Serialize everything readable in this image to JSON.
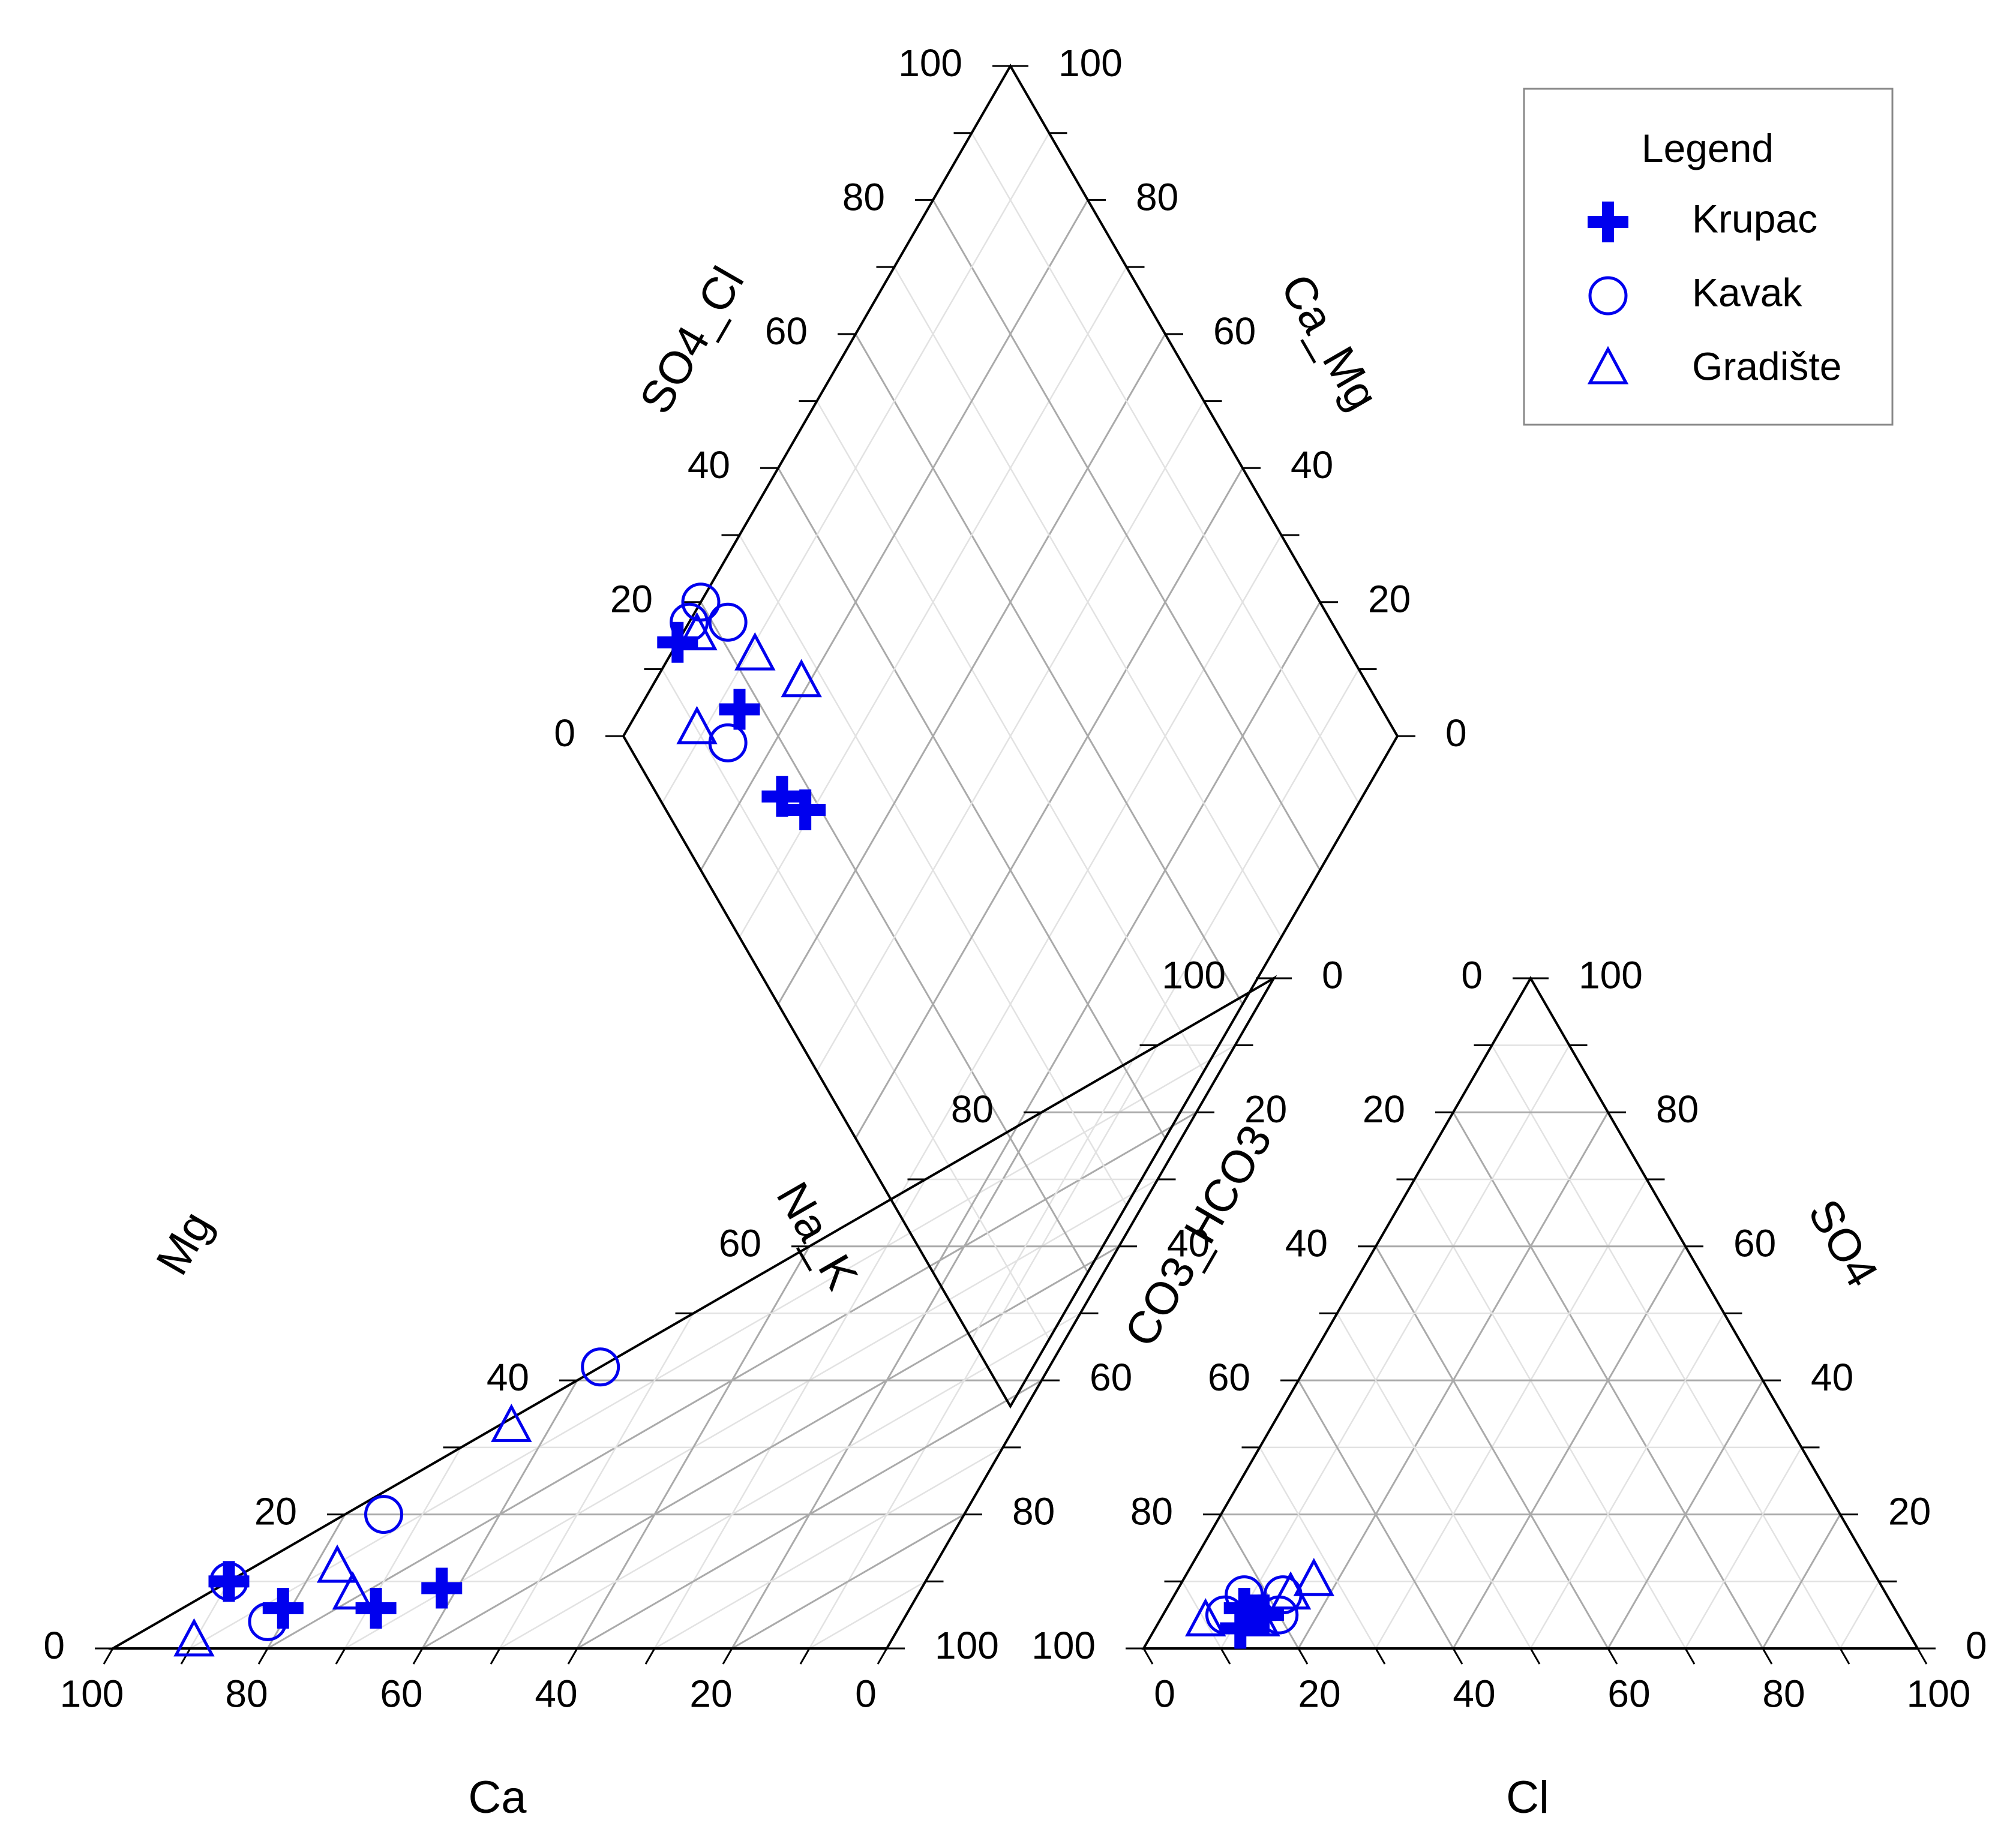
{
  "chart_data": {
    "type": "piper",
    "title": "",
    "colors": {
      "marker": "#0000ee",
      "frame": "#000000",
      "grid_major": "#aaaaaa",
      "grid_minor": "#e2e2e2"
    },
    "tick_labels": [
      "0",
      "20",
      "40",
      "60",
      "80",
      "100"
    ],
    "cation_triangle": {
      "bottom_axis_title": "Ca",
      "left_axis_title": "Mg",
      "right_axis_title": "Na_K"
    },
    "anion_triangle": {
      "bottom_axis_title": "Cl",
      "left_axis_title": "CO3_HCO3",
      "right_axis_title": "SO4"
    },
    "diamond": {
      "left_axis_title": "SO4_Cl",
      "right_axis_title": "Ca_Mg"
    },
    "legend": {
      "title": "Legend",
      "placement": "top-right"
    },
    "series": [
      {
        "name": "Krupac",
        "marker": "plus",
        "cations": [
          {
            "Ca": 90,
            "Mg": 10,
            "NaK": 0
          },
          {
            "Ca": 81,
            "Mg": 6,
            "NaK": 13
          },
          {
            "Ca": 69,
            "Mg": 6,
            "NaK": 25
          },
          {
            "Ca": 62,
            "Mg": 9,
            "NaK": 29
          }
        ],
        "anions": [
          {
            "Cl": 11,
            "SO4": 3,
            "HCO3": 86
          },
          {
            "Cl": 12,
            "SO4": 5,
            "HCO3": 83
          },
          {
            "Cl": 10,
            "SO4": 6,
            "HCO3": 84
          },
          {
            "Cl": 13,
            "SO4": 5,
            "HCO3": 82
          }
        ]
      },
      {
        "name": "Kavak",
        "marker": "circle",
        "cations": [
          {
            "Ca": 90,
            "Mg": 10,
            "NaK": 0
          },
          {
            "Ca": 75,
            "Mg": 20,
            "NaK": 5
          },
          {
            "Ca": 82,
            "Mg": 4,
            "NaK": 14
          },
          {
            "Ca": 58,
            "Mg": 42,
            "NaK": 0
          }
        ],
        "anions": [
          {
            "Cl": 9,
            "SO4": 8,
            "HCO3": 83
          },
          {
            "Cl": 14,
            "SO4": 8,
            "HCO3": 78
          },
          {
            "Cl": 8,
            "SO4": 5,
            "HCO3": 87
          },
          {
            "Cl": 15,
            "SO4": 5,
            "HCO3": 80
          }
        ]
      },
      {
        "name": "Gradište",
        "marker": "triangle",
        "cations": [
          {
            "Ca": 90,
            "Mg": 1,
            "NaK": 9
          },
          {
            "Ca": 77,
            "Mg": 12,
            "NaK": 11
          },
          {
            "Ca": 73,
            "Mg": 8,
            "NaK": 19
          },
          {
            "Ca": 65,
            "Mg": 33,
            "NaK": 2
          }
        ],
        "anions": [
          {
            "Cl": 6,
            "SO4": 4,
            "HCO3": 90
          },
          {
            "Cl": 15,
            "SO4": 8,
            "HCO3": 77
          },
          {
            "Cl": 17,
            "SO4": 10,
            "HCO3": 73
          },
          {
            "Cl": 13,
            "SO4": 4,
            "HCO3": 83
          }
        ]
      }
    ]
  }
}
